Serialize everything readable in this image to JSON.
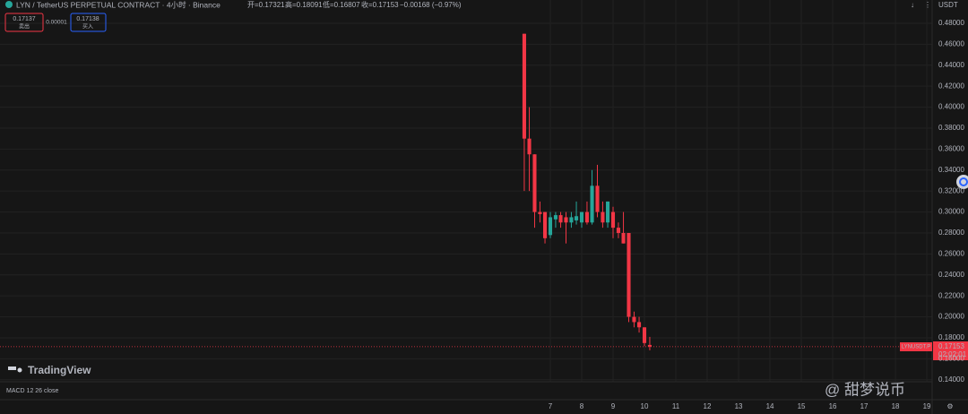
{
  "header": {
    "symbol": "LYN / TetherUS PERPETUAL CONTRACT · 4小时 · Binance",
    "open": "开=0.17321",
    "high": "高=0.18091",
    "low": "低=0.16807",
    "close": "收=0.17153",
    "change": "−0.00168 (−0.97%)"
  },
  "order_panel": {
    "sell_price": "0.17137",
    "sell_label": "卖出",
    "spread": "0.00001",
    "buy_price": "0.17138",
    "buy_label": "买入"
  },
  "currency": "USDT",
  "price_label": {
    "symbol": "LYNUSDT.P",
    "countdown": "02:02:01"
  },
  "logo": "TradingView",
  "indicator": "MACD 12 26 close",
  "watermark": "@ 甜梦说币",
  "chart_data": {
    "type": "candlestick",
    "x": [
      6.17,
      6.33,
      6.5,
      6.67,
      6.83,
      7.0,
      7.17,
      7.33,
      7.5,
      7.67,
      7.83,
      8.0,
      8.17,
      8.33,
      8.5,
      8.67,
      8.83,
      9.0,
      9.17,
      9.33,
      9.5,
      9.67,
      9.83,
      10.0,
      10.17
    ],
    "open": [
      0.47,
      0.37,
      0.355,
      0.3,
      0.3,
      0.278,
      0.293,
      0.297,
      0.295,
      0.29,
      0.292,
      0.29,
      0.3,
      0.29,
      0.325,
      0.3,
      0.29,
      0.3,
      0.285,
      0.28,
      0.28,
      0.2,
      0.195,
      0.19,
      0.17321
    ],
    "high": [
      0.47,
      0.4,
      0.355,
      0.31,
      0.3,
      0.3,
      0.3,
      0.3,
      0.3,
      0.3,
      0.31,
      0.3,
      0.31,
      0.34,
      0.345,
      0.31,
      0.31,
      0.305,
      0.29,
      0.3,
      0.28,
      0.205,
      0.2,
      0.19,
      0.18091
    ],
    "low": [
      0.32,
      0.32,
      0.285,
      0.29,
      0.27,
      0.275,
      0.285,
      0.285,
      0.27,
      0.285,
      0.288,
      0.285,
      0.288,
      0.288,
      0.295,
      0.285,
      0.285,
      0.275,
      0.275,
      0.27,
      0.195,
      0.19,
      0.185,
      0.172,
      0.16807
    ],
    "close": [
      0.37,
      0.355,
      0.3,
      0.298,
      0.275,
      0.295,
      0.297,
      0.29,
      0.29,
      0.295,
      0.296,
      0.3,
      0.29,
      0.325,
      0.3,
      0.29,
      0.31,
      0.285,
      0.28,
      0.27,
      0.2,
      0.195,
      0.19,
      0.175,
      0.17153
    ],
    "up_color": "#26a69a",
    "down_color": "#f23645",
    "last_price": {
      "value": 0.17153,
      "label": "0.17153"
    },
    "xlim": [
      -10.54,
      19.17
    ],
    "xticks": [
      7,
      8,
      9,
      10,
      11,
      12,
      13,
      14,
      15,
      16,
      17,
      18,
      19
    ],
    "ylim": [
      0.1381,
      0.5022
    ],
    "yticks": [
      {
        "value": 0.14,
        "label": "0.14000"
      },
      {
        "value": 0.16,
        "label": "0.16000"
      },
      {
        "value": 0.18,
        "label": "0.18000"
      },
      {
        "value": 0.2,
        "label": "0.20000"
      },
      {
        "value": 0.22,
        "label": "0.22000"
      },
      {
        "value": 0.24,
        "label": "0.24000"
      },
      {
        "value": 0.26,
        "label": "0.26000"
      },
      {
        "value": 0.28,
        "label": "0.28000"
      },
      {
        "value": 0.3,
        "label": "0.30000"
      },
      {
        "value": 0.32,
        "label": "0.32000"
      },
      {
        "value": 0.34,
        "label": "0.34000"
      },
      {
        "value": 0.36,
        "label": "0.36000"
      },
      {
        "value": 0.38,
        "label": "0.38000"
      },
      {
        "value": 0.4,
        "label": "0.40000"
      },
      {
        "value": 0.42,
        "label": "0.42000"
      },
      {
        "value": 0.44,
        "label": "0.44000"
      },
      {
        "value": 0.46,
        "label": "0.46000"
      },
      {
        "value": 0.48,
        "label": "0.48000"
      }
    ],
    "grid": true
  }
}
